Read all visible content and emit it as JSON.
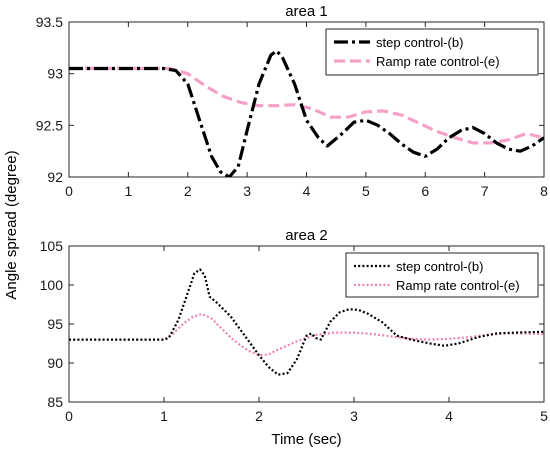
{
  "figure": {
    "shared_ylabel": "Angle spread (degree)"
  },
  "chart_data": [
    {
      "type": "line",
      "title": "area 1",
      "xlabel": "",
      "ylabel": "Angle spread (degree)",
      "xlim": [
        0,
        8
      ],
      "ylim": [
        92,
        93.5
      ],
      "xticks": [
        "0",
        "1",
        "2",
        "3",
        "4",
        "5",
        "6",
        "7",
        "8"
      ],
      "yticks": [
        "92",
        "92.5",
        "93",
        "93.5"
      ],
      "legend": {
        "position": "top-right"
      },
      "series": [
        {
          "name": "step control-(b)",
          "color": "#000000",
          "style": "dashdot",
          "x": [
            0,
            1.0,
            1.6,
            1.8,
            2.0,
            2.2,
            2.4,
            2.55,
            2.7,
            2.85,
            3.0,
            3.2,
            3.4,
            3.5,
            3.6,
            3.8,
            4.0,
            4.2,
            4.35,
            4.6,
            4.8,
            5.0,
            5.2,
            5.4,
            5.6,
            5.8,
            6.0,
            6.2,
            6.4,
            6.6,
            6.8,
            7.0,
            7.2,
            7.4,
            7.6,
            7.8,
            8.0
          ],
          "y": [
            93.05,
            93.05,
            93.05,
            93.03,
            92.9,
            92.55,
            92.2,
            92.05,
            92.0,
            92.1,
            92.45,
            92.9,
            93.18,
            93.22,
            93.15,
            92.9,
            92.55,
            92.38,
            92.3,
            92.42,
            92.53,
            92.55,
            92.5,
            92.42,
            92.32,
            92.24,
            92.2,
            92.27,
            92.38,
            92.45,
            92.48,
            92.42,
            92.33,
            92.27,
            92.25,
            92.3,
            92.38
          ]
        },
        {
          "name": "Ramp rate control-(e)",
          "color": "#f5a0c8",
          "style": "dashed",
          "x": [
            0,
            1.0,
            1.7,
            2.0,
            2.3,
            2.6,
            2.9,
            3.2,
            3.5,
            3.8,
            4.1,
            4.4,
            4.7,
            5.0,
            5.3,
            5.6,
            5.9,
            6.2,
            6.5,
            6.8,
            7.1,
            7.4,
            7.7,
            8.0
          ],
          "y": [
            93.05,
            93.05,
            93.05,
            93.0,
            92.88,
            92.78,
            92.72,
            92.69,
            92.69,
            92.7,
            92.66,
            92.58,
            92.58,
            92.63,
            92.64,
            92.6,
            92.52,
            92.44,
            92.38,
            92.33,
            92.33,
            92.36,
            92.42,
            92.38
          ]
        }
      ]
    },
    {
      "type": "line",
      "title": "area 2",
      "xlabel": "Time (sec)",
      "ylabel": "Angle spread (degree)",
      "xlim": [
        0,
        5
      ],
      "ylim": [
        85,
        105
      ],
      "xticks": [
        "0",
        "1",
        "2",
        "3",
        "4",
        "5"
      ],
      "yticks": [
        "85",
        "90",
        "95",
        "100",
        "105"
      ],
      "legend": {
        "position": "top-right"
      },
      "series": [
        {
          "name": "step control-(b)",
          "color": "#000000",
          "style": "dotted",
          "x": [
            0,
            1.0,
            1.05,
            1.15,
            1.25,
            1.32,
            1.38,
            1.43,
            1.48,
            1.55,
            1.7,
            1.85,
            2.0,
            2.1,
            2.2,
            2.3,
            2.4,
            2.5,
            2.55,
            2.6,
            2.65,
            2.75,
            2.85,
            2.95,
            3.05,
            3.15,
            3.3,
            3.45,
            3.6,
            3.8,
            3.95,
            4.1,
            4.3,
            4.5,
            4.7,
            5.0
          ],
          "y": [
            93,
            93,
            93.2,
            95.5,
            99,
            101.5,
            102,
            101.2,
            98.5,
            97.8,
            96,
            93.5,
            91,
            89.5,
            88.5,
            88.7,
            90.5,
            93.5,
            93.8,
            93.2,
            93.0,
            95.3,
            96.5,
            96.9,
            96.8,
            96.3,
            95.2,
            93.5,
            93.0,
            92.5,
            92.2,
            92.5,
            93.3,
            93.8,
            93.9,
            94.0
          ]
        },
        {
          "name": "Ramp rate control-(e)",
          "color": "#f080b8",
          "style": "dotted",
          "x": [
            0,
            1.0,
            1.1,
            1.2,
            1.3,
            1.4,
            1.5,
            1.6,
            1.7,
            1.8,
            1.9,
            2.0,
            2.1,
            2.2,
            2.4,
            2.6,
            2.8,
            3.0,
            3.2,
            3.4,
            3.6,
            3.8,
            4.0,
            4.2,
            4.4,
            4.6,
            4.8,
            5.0
          ],
          "y": [
            93,
            93,
            93.8,
            95.0,
            95.9,
            96.3,
            95.7,
            94.5,
            93.3,
            92.3,
            91.5,
            91.0,
            91.1,
            91.7,
            92.8,
            93.6,
            93.9,
            93.9,
            93.7,
            93.4,
            93.1,
            93.0,
            93.1,
            93.3,
            93.6,
            93.8,
            93.8,
            93.7
          ]
        }
      ]
    }
  ]
}
